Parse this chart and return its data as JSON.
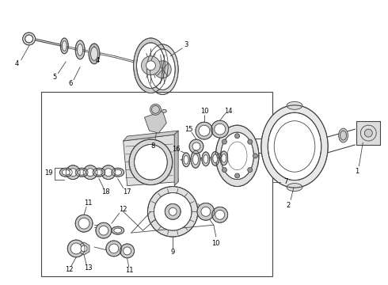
{
  "background_color": "#ffffff",
  "line_color": "#444444",
  "text_color": "#000000",
  "fig_width": 4.9,
  "fig_height": 3.6,
  "dpi": 100
}
